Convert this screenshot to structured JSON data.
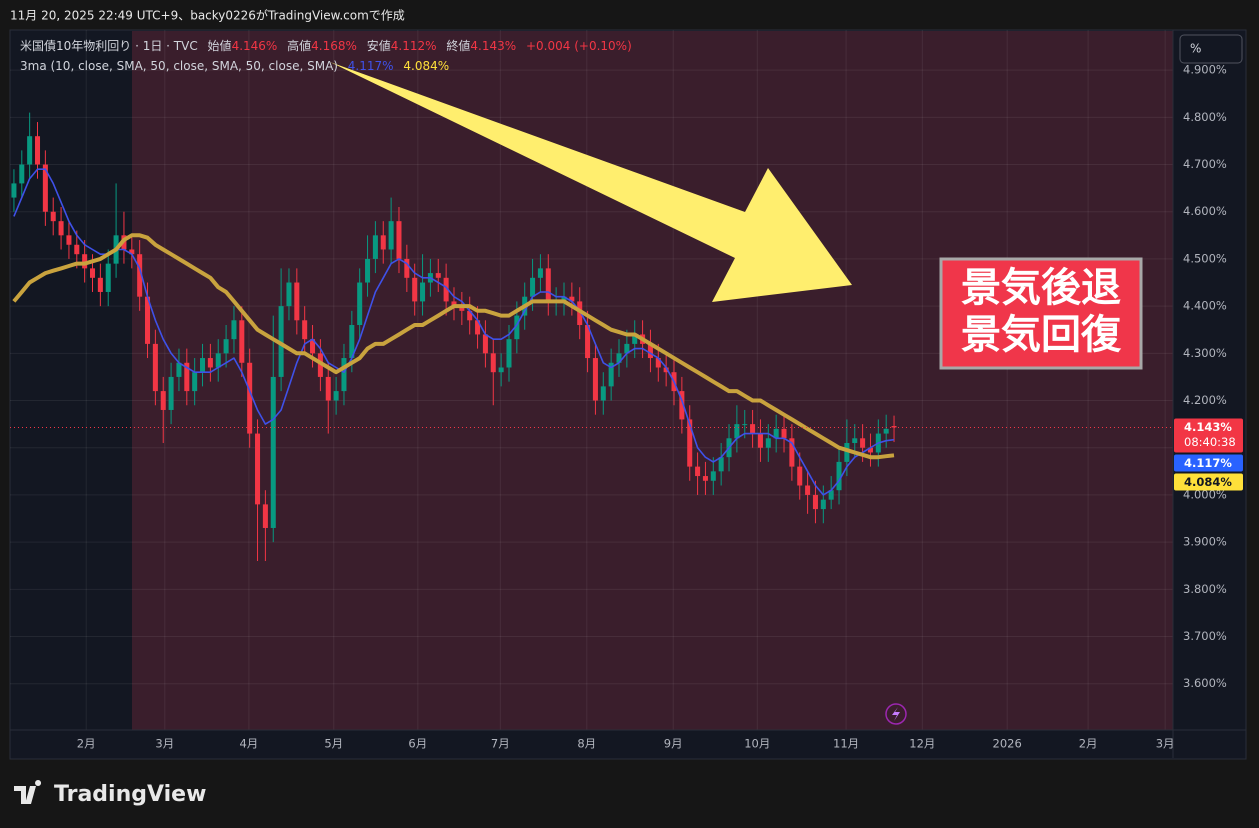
{
  "header": "11月 20, 2025 22:49 UTC+9、backy0226がTradingView.comで作成",
  "watermark": "TradingView",
  "chart_data": {
    "type": "candlestick",
    "title": "米国債10年物利回り · 1日 · TVC",
    "legend": {
      "open_label": "始値",
      "open": "4.146%",
      "high_label": "高値",
      "high": "4.168%",
      "low_label": "安値",
      "low": "4.112%",
      "close_label": "終値",
      "close": "4.143%",
      "change": "+0.004 (+0.10%)"
    },
    "indicator": "3ma (10, close, SMA, 50, close, SMA, 50, close, SMA)",
    "unit_button": "%",
    "up_color": "#089981",
    "down_color": "#f23645",
    "open": [
      4.63,
      4.66,
      4.7,
      4.76,
      4.7,
      4.6,
      4.58,
      4.55,
      4.53,
      4.51,
      4.48,
      4.46,
      4.43,
      4.49,
      4.55,
      4.52,
      4.51,
      4.42,
      4.32,
      4.22,
      4.18,
      4.25,
      4.28,
      4.22,
      4.26,
      4.29,
      4.27,
      4.3,
      4.33,
      4.37,
      4.28,
      4.13,
      3.98,
      3.93,
      4.25,
      4.4,
      4.45,
      4.37,
      4.33,
      4.3,
      4.25,
      4.2,
      4.22,
      4.29,
      4.36,
      4.45,
      4.5,
      4.55,
      4.52,
      4.58,
      4.5,
      4.46,
      4.41,
      4.45,
      4.47,
      4.46,
      4.41,
      4.4,
      4.39,
      4.37,
      4.34,
      4.3,
      4.26,
      4.27,
      4.33,
      4.38,
      4.42,
      4.46,
      4.48,
      4.41,
      4.41,
      4.42,
      4.41,
      4.36,
      4.29,
      4.2,
      4.23,
      4.28,
      4.3,
      4.32,
      4.34,
      4.32,
      4.29,
      4.27,
      4.26,
      4.22,
      4.16,
      4.06,
      4.04,
      4.03,
      4.05,
      4.08,
      4.12,
      4.15,
      4.15,
      4.13,
      4.1,
      4.12,
      4.14,
      4.12,
      4.06,
      4.02,
      4.0,
      3.97,
      3.99,
      4.01,
      4.07,
      4.11,
      4.12,
      4.1,
      4.09,
      4.13,
      4.146
    ],
    "high": [
      4.69,
      4.73,
      4.81,
      4.79,
      4.73,
      4.63,
      4.61,
      4.58,
      4.56,
      4.54,
      4.51,
      4.49,
      4.52,
      4.66,
      4.6,
      4.55,
      4.54,
      4.45,
      4.35,
      4.25,
      4.28,
      4.31,
      4.31,
      4.29,
      4.32,
      4.32,
      4.33,
      4.36,
      4.4,
      4.4,
      4.31,
      4.16,
      4.01,
      4.38,
      4.48,
      4.48,
      4.48,
      4.4,
      4.36,
      4.33,
      4.28,
      4.25,
      4.32,
      4.39,
      4.48,
      4.55,
      4.58,
      4.58,
      4.63,
      4.61,
      4.53,
      4.49,
      4.51,
      4.5,
      4.5,
      4.49,
      4.44,
      4.43,
      4.42,
      4.4,
      4.37,
      4.33,
      4.3,
      4.36,
      4.41,
      4.45,
      4.5,
      4.51,
      4.51,
      4.44,
      4.45,
      4.45,
      4.44,
      4.39,
      4.32,
      4.26,
      4.31,
      4.33,
      4.35,
      4.37,
      4.37,
      4.35,
      4.32,
      4.3,
      4.29,
      4.25,
      4.19,
      4.09,
      4.07,
      4.08,
      4.11,
      4.15,
      4.19,
      4.18,
      4.18,
      4.16,
      4.15,
      4.17,
      4.17,
      4.15,
      4.09,
      4.05,
      4.03,
      4.02,
      4.04,
      4.1,
      4.16,
      4.15,
      4.15,
      4.13,
      4.16,
      4.17,
      4.168
    ],
    "low": [
      4.6,
      4.63,
      4.67,
      4.67,
      4.57,
      4.55,
      4.52,
      4.5,
      4.48,
      4.45,
      4.43,
      4.4,
      4.4,
      4.46,
      4.49,
      4.48,
      4.39,
      4.29,
      4.19,
      4.11,
      4.15,
      4.22,
      4.19,
      4.19,
      4.23,
      4.24,
      4.24,
      4.27,
      4.3,
      4.25,
      4.1,
      3.86,
      3.86,
      3.9,
      4.22,
      4.37,
      4.34,
      4.3,
      4.27,
      4.22,
      4.13,
      4.17,
      4.19,
      4.26,
      4.33,
      4.42,
      4.47,
      4.49,
      4.49,
      4.47,
      4.43,
      4.38,
      4.38,
      4.42,
      4.43,
      4.38,
      4.37,
      4.36,
      4.34,
      4.31,
      4.27,
      4.19,
      4.23,
      4.24,
      4.3,
      4.35,
      4.39,
      4.43,
      4.38,
      4.38,
      4.38,
      4.38,
      4.33,
      4.26,
      4.17,
      4.17,
      4.2,
      4.25,
      4.27,
      4.29,
      4.29,
      4.26,
      4.24,
      4.23,
      4.19,
      4.13,
      4.03,
      4.0,
      4.0,
      4.0,
      4.02,
      4.05,
      4.09,
      4.12,
      4.1,
      4.07,
      4.07,
      4.09,
      4.09,
      4.03,
      3.99,
      3.96,
      3.94,
      3.94,
      3.97,
      3.98,
      4.04,
      4.08,
      4.07,
      4.06,
      4.06,
      4.1,
      4.112
    ],
    "close": [
      4.66,
      4.7,
      4.76,
      4.7,
      4.6,
      4.58,
      4.55,
      4.53,
      4.51,
      4.48,
      4.46,
      4.43,
      4.49,
      4.55,
      4.52,
      4.51,
      4.42,
      4.32,
      4.22,
      4.18,
      4.25,
      4.28,
      4.22,
      4.26,
      4.29,
      4.27,
      4.3,
      4.33,
      4.37,
      4.28,
      4.13,
      3.98,
      3.93,
      4.25,
      4.4,
      4.45,
      4.37,
      4.33,
      4.3,
      4.25,
      4.2,
      4.22,
      4.29,
      4.36,
      4.45,
      4.5,
      4.55,
      4.52,
      4.58,
      4.5,
      4.46,
      4.41,
      4.45,
      4.47,
      4.46,
      4.41,
      4.4,
      4.39,
      4.37,
      4.34,
      4.3,
      4.26,
      4.27,
      4.33,
      4.38,
      4.42,
      4.46,
      4.48,
      4.41,
      4.41,
      4.42,
      4.41,
      4.36,
      4.29,
      4.2,
      4.23,
      4.28,
      4.3,
      4.32,
      4.34,
      4.32,
      4.29,
      4.27,
      4.26,
      4.22,
      4.16,
      4.06,
      4.04,
      4.03,
      4.05,
      4.08,
      4.12,
      4.15,
      4.15,
      4.13,
      4.1,
      4.12,
      4.14,
      4.12,
      4.06,
      4.02,
      4.0,
      3.97,
      3.99,
      4.01,
      4.07,
      4.11,
      4.12,
      4.1,
      4.09,
      4.13,
      4.14,
      4.143
    ],
    "series": [
      {
        "color": "#3f51e8",
        "width": 1.6,
        "value_label": "4.117%",
        "values": [
          4.59,
          4.63,
          4.67,
          4.69,
          4.69,
          4.66,
          4.62,
          4.58,
          4.55,
          4.53,
          4.52,
          4.51,
          4.51,
          4.52,
          4.52,
          4.51,
          4.48,
          4.42,
          4.37,
          4.33,
          4.3,
          4.28,
          4.27,
          4.26,
          4.26,
          4.26,
          4.27,
          4.28,
          4.29,
          4.26,
          4.22,
          4.18,
          4.15,
          4.16,
          4.18,
          4.23,
          4.28,
          4.32,
          4.33,
          4.31,
          4.28,
          4.27,
          4.26,
          4.29,
          4.33,
          4.38,
          4.43,
          4.46,
          4.49,
          4.5,
          4.49,
          4.47,
          4.46,
          4.46,
          4.45,
          4.44,
          4.42,
          4.41,
          4.39,
          4.37,
          4.34,
          4.33,
          4.33,
          4.34,
          4.36,
          4.39,
          4.42,
          4.43,
          4.43,
          4.42,
          4.42,
          4.41,
          4.39,
          4.36,
          4.32,
          4.28,
          4.27,
          4.28,
          4.3,
          4.31,
          4.31,
          4.3,
          4.29,
          4.27,
          4.24,
          4.2,
          4.15,
          4.1,
          4.08,
          4.07,
          4.08,
          4.1,
          4.12,
          4.13,
          4.13,
          4.13,
          4.13,
          4.12,
          4.12,
          4.11,
          4.08,
          4.05,
          4.02,
          4.0,
          4.01,
          4.03,
          4.06,
          4.08,
          4.09,
          4.1,
          4.11,
          4.115,
          4.117
        ]
      },
      {
        "color": "#c9a33e",
        "width": 4,
        "value_label": "4.084%",
        "values": [
          4.41,
          4.43,
          4.45,
          4.46,
          4.47,
          4.475,
          4.48,
          4.485,
          4.49,
          4.49,
          4.495,
          4.5,
          4.51,
          4.52,
          4.54,
          4.55,
          4.55,
          4.545,
          4.53,
          4.52,
          4.51,
          4.5,
          4.49,
          4.48,
          4.47,
          4.46,
          4.44,
          4.43,
          4.41,
          4.39,
          4.37,
          4.35,
          4.34,
          4.33,
          4.32,
          4.31,
          4.3,
          4.3,
          4.29,
          4.28,
          4.27,
          4.26,
          4.27,
          4.28,
          4.29,
          4.31,
          4.32,
          4.32,
          4.33,
          4.34,
          4.35,
          4.36,
          4.36,
          4.37,
          4.38,
          4.39,
          4.4,
          4.4,
          4.4,
          4.39,
          4.39,
          4.385,
          4.38,
          4.38,
          4.39,
          4.4,
          4.41,
          4.41,
          4.41,
          4.41,
          4.41,
          4.4,
          4.39,
          4.38,
          4.37,
          4.36,
          4.35,
          4.345,
          4.34,
          4.34,
          4.33,
          4.32,
          4.31,
          4.3,
          4.29,
          4.28,
          4.27,
          4.26,
          4.25,
          4.24,
          4.23,
          4.22,
          4.22,
          4.21,
          4.2,
          4.2,
          4.19,
          4.18,
          4.17,
          4.16,
          4.15,
          4.14,
          4.13,
          4.12,
          4.11,
          4.1,
          4.095,
          4.09,
          4.085,
          4.08,
          4.08,
          4.082,
          4.084
        ]
      }
    ],
    "last_label": "4.143%",
    "countdown": "08:40:38",
    "ylim": [
      3.502,
      4.985
    ],
    "yticks": [
      {
        "value": 3.6,
        "label": "3.600%"
      },
      {
        "value": 3.7,
        "label": "3.700%"
      },
      {
        "value": 3.8,
        "label": "3.800%"
      },
      {
        "value": 3.9,
        "label": "3.900%"
      },
      {
        "value": 4.0,
        "label": "4.000%"
      },
      {
        "value": 4.1,
        "label": "4.100%"
      },
      {
        "value": 4.2,
        "label": "4.200%"
      },
      {
        "value": 4.3,
        "label": "4.300%"
      },
      {
        "value": 4.4,
        "label": "4.400%"
      },
      {
        "value": 4.5,
        "label": "4.500%"
      },
      {
        "value": 4.6,
        "label": "4.600%"
      },
      {
        "value": 4.7,
        "label": "4.700%"
      },
      {
        "value": 4.8,
        "label": "4.800%"
      },
      {
        "value": 4.9,
        "label": "4.900%"
      }
    ],
    "xlim": [
      -0.5,
      147.5
    ],
    "xticks": [
      {
        "value": 9.2,
        "label": "2月"
      },
      {
        "value": 19.2,
        "label": "3月"
      },
      {
        "value": 29.9,
        "label": "4月"
      },
      {
        "value": 40.7,
        "label": "5月"
      },
      {
        "value": 51.4,
        "label": "6月"
      },
      {
        "value": 61.9,
        "label": "7月"
      },
      {
        "value": 72.9,
        "label": "8月"
      },
      {
        "value": 83.9,
        "label": "9月"
      },
      {
        "value": 94.6,
        "label": "10月"
      },
      {
        "value": 105.9,
        "label": "11月"
      },
      {
        "value": 115.6,
        "label": "12月"
      },
      {
        "value": 126.4,
        "label": "2026"
      },
      {
        "value": 136.7,
        "label": "2月"
      },
      {
        "value": 146.5,
        "label": "3月"
      }
    ],
    "grid": true,
    "annotations": [
      "景気後退",
      "景気回復"
    ]
  }
}
